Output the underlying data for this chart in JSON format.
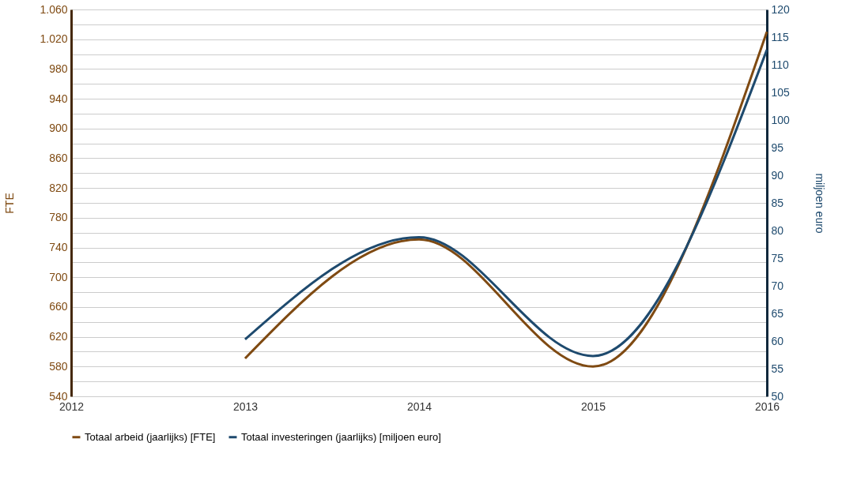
{
  "chart_data": {
    "type": "line",
    "xlabel": null,
    "ylabel": "FTE",
    "y2label": "miljoen euro",
    "x": [
      2013,
      2014,
      2015,
      2016
    ],
    "series": [
      {
        "name": "Totaal arbeid (jaarlijks) [FTE]",
        "color": "#7f4a12",
        "values": [
          591,
          751,
          580,
          1030
        ]
      },
      {
        "name": "Totaal investeringen (jaarlijks) [miljoen euro]",
        "color": "#1e4a6e",
        "values": [
          60.3,
          78.8,
          57.3,
          112.7
        ],
        "axis": "y2"
      }
    ],
    "xlim": [
      2012,
      2016
    ],
    "xticks": [
      2012,
      2013,
      2014,
      2015,
      2016
    ],
    "ylim": [
      540,
      1060
    ],
    "yticks": [
      540,
      {
        "value": 560,
        "label": null
      },
      580,
      {
        "value": 600,
        "label": null
      },
      620,
      {
        "value": 640,
        "label": null
      },
      660,
      {
        "value": 680,
        "label": null
      },
      700,
      {
        "value": 720,
        "label": null
      },
      740,
      {
        "value": 760,
        "label": null
      },
      780,
      {
        "value": 800,
        "label": null
      },
      820,
      {
        "value": 840,
        "label": null
      },
      860,
      {
        "value": 880,
        "label": null
      },
      900,
      {
        "value": 920,
        "label": null
      },
      940,
      {
        "value": 960,
        "label": null
      },
      980,
      {
        "value": 1000,
        "label": null
      },
      {
        "value": 1020,
        "label": "1.020"
      },
      {
        "value": 1040,
        "label": null
      },
      {
        "value": 1060,
        "label": "1.060"
      }
    ],
    "y2lim": [
      50,
      120
    ],
    "y2ticks": [
      50,
      55,
      60,
      65,
      70,
      75,
      80,
      85,
      90,
      95,
      100,
      105,
      110,
      115,
      120
    ],
    "grid": "y",
    "legend": "bottom",
    "marker": "none",
    "line_style": "solid"
  }
}
